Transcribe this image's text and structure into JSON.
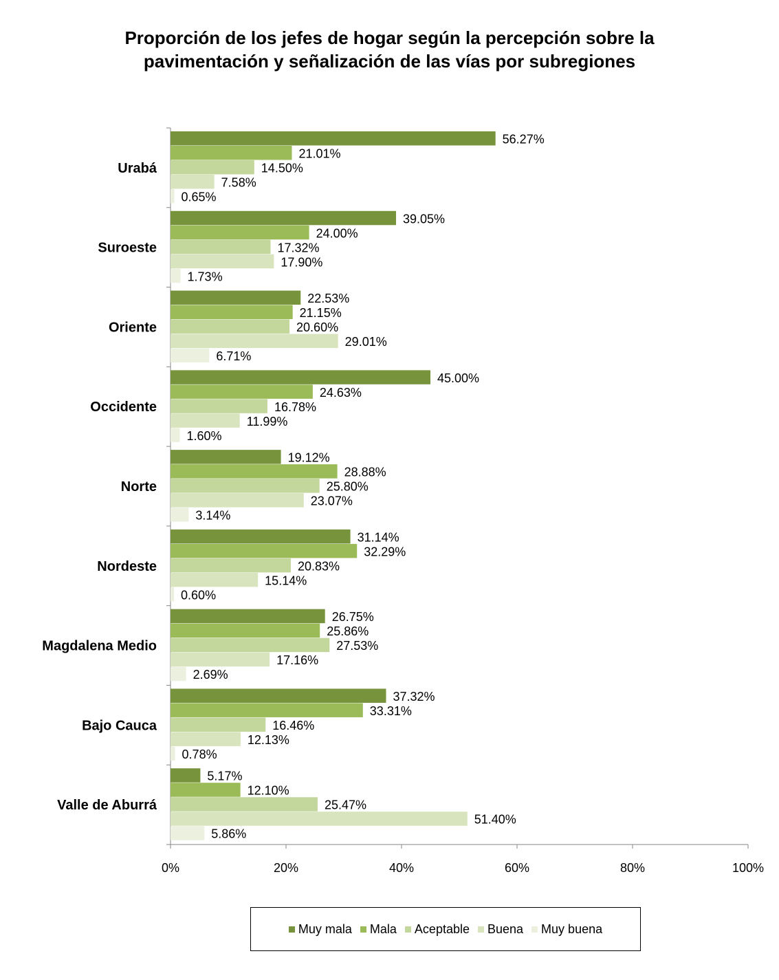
{
  "chart_data": {
    "type": "bar",
    "orientation": "horizontal",
    "title_lines": [
      "Proporción de los jefes de  hogar según la percepción sobre la",
      "pavimentación y señalización de las vías por subregiones"
    ],
    "categories": [
      "Urabá",
      "Suroeste",
      "Oriente",
      "Occidente",
      "Norte",
      "Nordeste",
      "Magdalena Medio",
      "Bajo Cauca",
      "Valle de Aburrá"
    ],
    "series": [
      {
        "name": "Muy mala",
        "color": "#77933c",
        "values": [
          56.27,
          39.05,
          22.53,
          45.0,
          19.12,
          31.14,
          26.75,
          37.32,
          5.17
        ]
      },
      {
        "name": "Mala",
        "color": "#9bbb59",
        "values": [
          21.01,
          24.0,
          21.15,
          24.63,
          28.88,
          32.29,
          25.86,
          33.31,
          12.1
        ]
      },
      {
        "name": "Aceptable",
        "color": "#c3d69b",
        "values": [
          14.5,
          17.32,
          20.6,
          16.78,
          25.8,
          20.83,
          27.53,
          16.46,
          25.47
        ]
      },
      {
        "name": "Buena",
        "color": "#d7e4bd",
        "values": [
          7.58,
          17.9,
          29.01,
          11.99,
          23.07,
          15.14,
          17.16,
          12.13,
          51.4
        ]
      },
      {
        "name": "Muy buena",
        "color": "#ebf1de",
        "values": [
          0.65,
          1.73,
          6.71,
          1.6,
          3.14,
          0.6,
          2.69,
          0.78,
          5.86
        ]
      }
    ],
    "data_labels": [
      [
        "56.27%",
        "21.01%",
        "14.50%",
        "7.58%",
        "0.65%"
      ],
      [
        "39.05%",
        "24.00%",
        "17.32%",
        "17.90%",
        "1.73%"
      ],
      [
        "22.53%",
        "21.15%",
        "20.60%",
        "29.01%",
        "6.71%"
      ],
      [
        "45.00%",
        "24.63%",
        "16.78%",
        "11.99%",
        "1.60%"
      ],
      [
        "19.12%",
        "28.88%",
        "25.80%",
        "23.07%",
        "3.14%"
      ],
      [
        "31.14%",
        "32.29%",
        "20.83%",
        "15.14%",
        "0.60%"
      ],
      [
        "26.75%",
        "25.86%",
        "27.53%",
        "17.16%",
        "2.69%"
      ],
      [
        "37.32%",
        "33.31%",
        "16.46%",
        "12.13%",
        "0.78%"
      ],
      [
        "5.17%",
        "12.10%",
        "25.47%",
        "51.40%",
        "5.86%"
      ]
    ],
    "xlim": [
      0,
      100
    ],
    "xticks": [
      0,
      20,
      40,
      60,
      80,
      100
    ],
    "xtick_labels": [
      "0%",
      "20%",
      "40%",
      "60%",
      "80%",
      "100%"
    ],
    "grid": false,
    "legend_position": "bottom"
  }
}
